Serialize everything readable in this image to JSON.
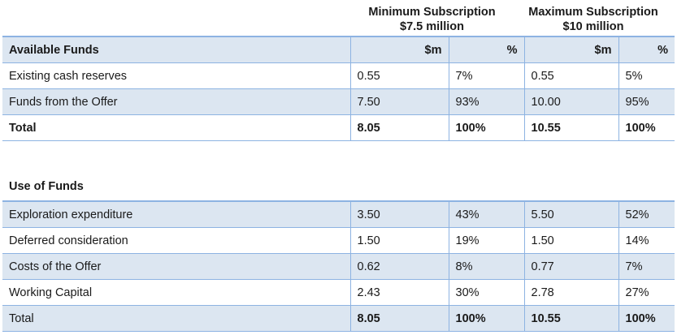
{
  "headers": {
    "min_line1": "Minimum Subscription",
    "min_line2": "$7.5 million",
    "max_line1": "Maximum Subscription",
    "max_line2": "$10 million"
  },
  "available": {
    "title": "Available Funds",
    "col_m1": "$m",
    "col_p1": "%",
    "col_m2": "$m",
    "col_p2": "%",
    "rows": [
      {
        "label": "Existing cash reserves",
        "min_m": "0.55",
        "min_p": "7%",
        "max_m": "0.55",
        "max_p": "5%"
      },
      {
        "label": "Funds from the Offer",
        "min_m": "7.50",
        "min_p": "93%",
        "max_m": "10.00",
        "max_p": "95%"
      },
      {
        "label": "Total",
        "min_m": "8.05",
        "min_p": "100%",
        "max_m": "10.55",
        "max_p": "100%"
      }
    ]
  },
  "uses": {
    "title": "Use of Funds",
    "rows": [
      {
        "label": "Exploration expenditure",
        "min_m": "3.50",
        "min_p": "43%",
        "max_m": "5.50",
        "max_p": "52%"
      },
      {
        "label": "Deferred consideration",
        "min_m": "1.50",
        "min_p": "19%",
        "max_m": "1.50",
        "max_p": "14%"
      },
      {
        "label": "Costs of the Offer",
        "min_m": "0.62",
        "min_p": "8%",
        "max_m": "0.77",
        "max_p": "7%"
      },
      {
        "label": "Working Capital",
        "min_m": "2.43",
        "min_p": "30%",
        "max_m": "2.78",
        "max_p": "27%"
      },
      {
        "label": "Total",
        "min_m": "8.05",
        "min_p": "100%",
        "max_m": "10.55",
        "max_p": "100%"
      }
    ]
  }
}
